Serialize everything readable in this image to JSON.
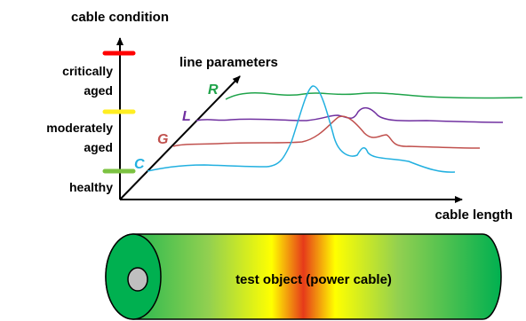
{
  "axes": {
    "y_title": "cable condition",
    "x_title": "cable length",
    "diag_title": "line parameters"
  },
  "condition_levels": [
    {
      "lines": [
        "critically",
        "aged"
      ],
      "color": "#ff0000"
    },
    {
      "lines": [
        "moderately",
        "aged"
      ],
      "color": "#ffee22"
    },
    {
      "lines": [
        "healthy"
      ],
      "color": "#7cc242"
    }
  ],
  "parameters": [
    {
      "symbol": "R",
      "color": "#1fa34a"
    },
    {
      "symbol": "L",
      "color": "#7030a0"
    },
    {
      "symbol": "G",
      "color": "#c0504d"
    },
    {
      "symbol": "C",
      "color": "#22b0e0"
    }
  ],
  "cable": {
    "label": "test object (power cable)",
    "gradient": [
      "#00b050",
      "#92d050",
      "#ffff00",
      "#e63a1a",
      "#ffff00",
      "#92d050",
      "#00b050"
    ]
  }
}
